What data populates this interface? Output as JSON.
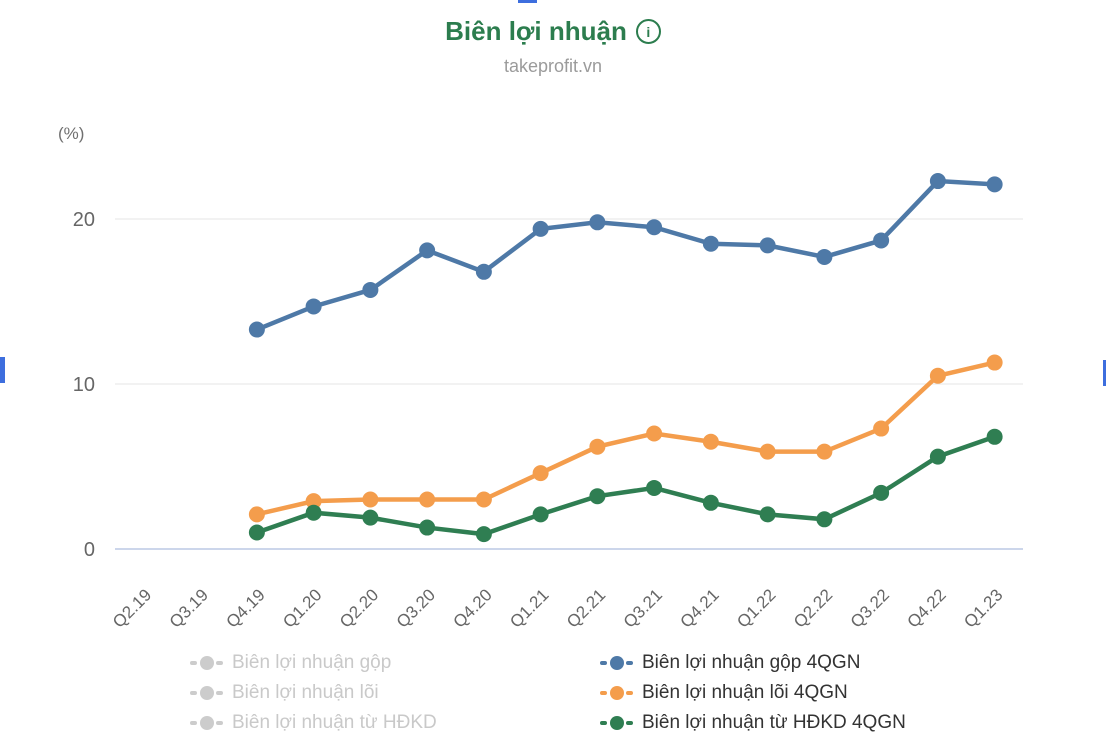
{
  "header": {
    "title": "Biên lợi nhuận",
    "info_icon_glyph": "i",
    "subtitle": "takeprofit.vn"
  },
  "colors": {
    "title_green": "#2c7d4e",
    "axis_zero_line": "#ccd6eb",
    "gridline": "#e6e6e6",
    "muted_legend": "#cccccc",
    "edge_artifact_blue": "#3d6ede"
  },
  "chart_data": {
    "type": "line",
    "title": "Biên lợi nhuận",
    "subtitle": "takeprofit.vn",
    "ylabel": "(%)",
    "xlabel": "",
    "ylim": [
      0,
      24
    ],
    "yticks": [
      0,
      10,
      20
    ],
    "grid": "horizontal",
    "legend_position": "bottom",
    "categories": [
      "Q2.19",
      "Q3.19",
      "Q4.19",
      "Q1.20",
      "Q2.20",
      "Q3.20",
      "Q4.20",
      "Q1.21",
      "Q2.21",
      "Q3.21",
      "Q4.21",
      "Q1.22",
      "Q2.22",
      "Q3.22",
      "Q4.22",
      "Q1.23"
    ],
    "series": [
      {
        "name": "Biên lợi nhuận gộp 4QGN",
        "color": "#4E79A7",
        "values": [
          null,
          null,
          13.3,
          14.7,
          15.7,
          18.1,
          16.8,
          19.4,
          19.8,
          19.5,
          18.5,
          18.4,
          17.7,
          18.7,
          22.3,
          22.1
        ]
      },
      {
        "name": "Biên lợi nhuận lõi 4QGN",
        "color": "#F49D4C",
        "values": [
          null,
          null,
          2.1,
          2.9,
          3.0,
          3.0,
          3.0,
          4.6,
          6.2,
          7.0,
          6.5,
          5.9,
          5.9,
          7.3,
          10.5,
          11.3
        ]
      },
      {
        "name": "Biên lợi nhuận từ HĐKD 4QGN",
        "color": "#2F7E52",
        "values": [
          null,
          null,
          1.0,
          2.2,
          1.9,
          1.3,
          0.9,
          2.1,
          3.2,
          3.7,
          2.8,
          2.1,
          1.8,
          3.4,
          5.6,
          6.8
        ]
      }
    ],
    "legend_inactive": [
      "Biên lợi nhuận gộp",
      "Biên lợi nhuận lõi",
      "Biên lợi nhuận từ HĐKD"
    ]
  }
}
